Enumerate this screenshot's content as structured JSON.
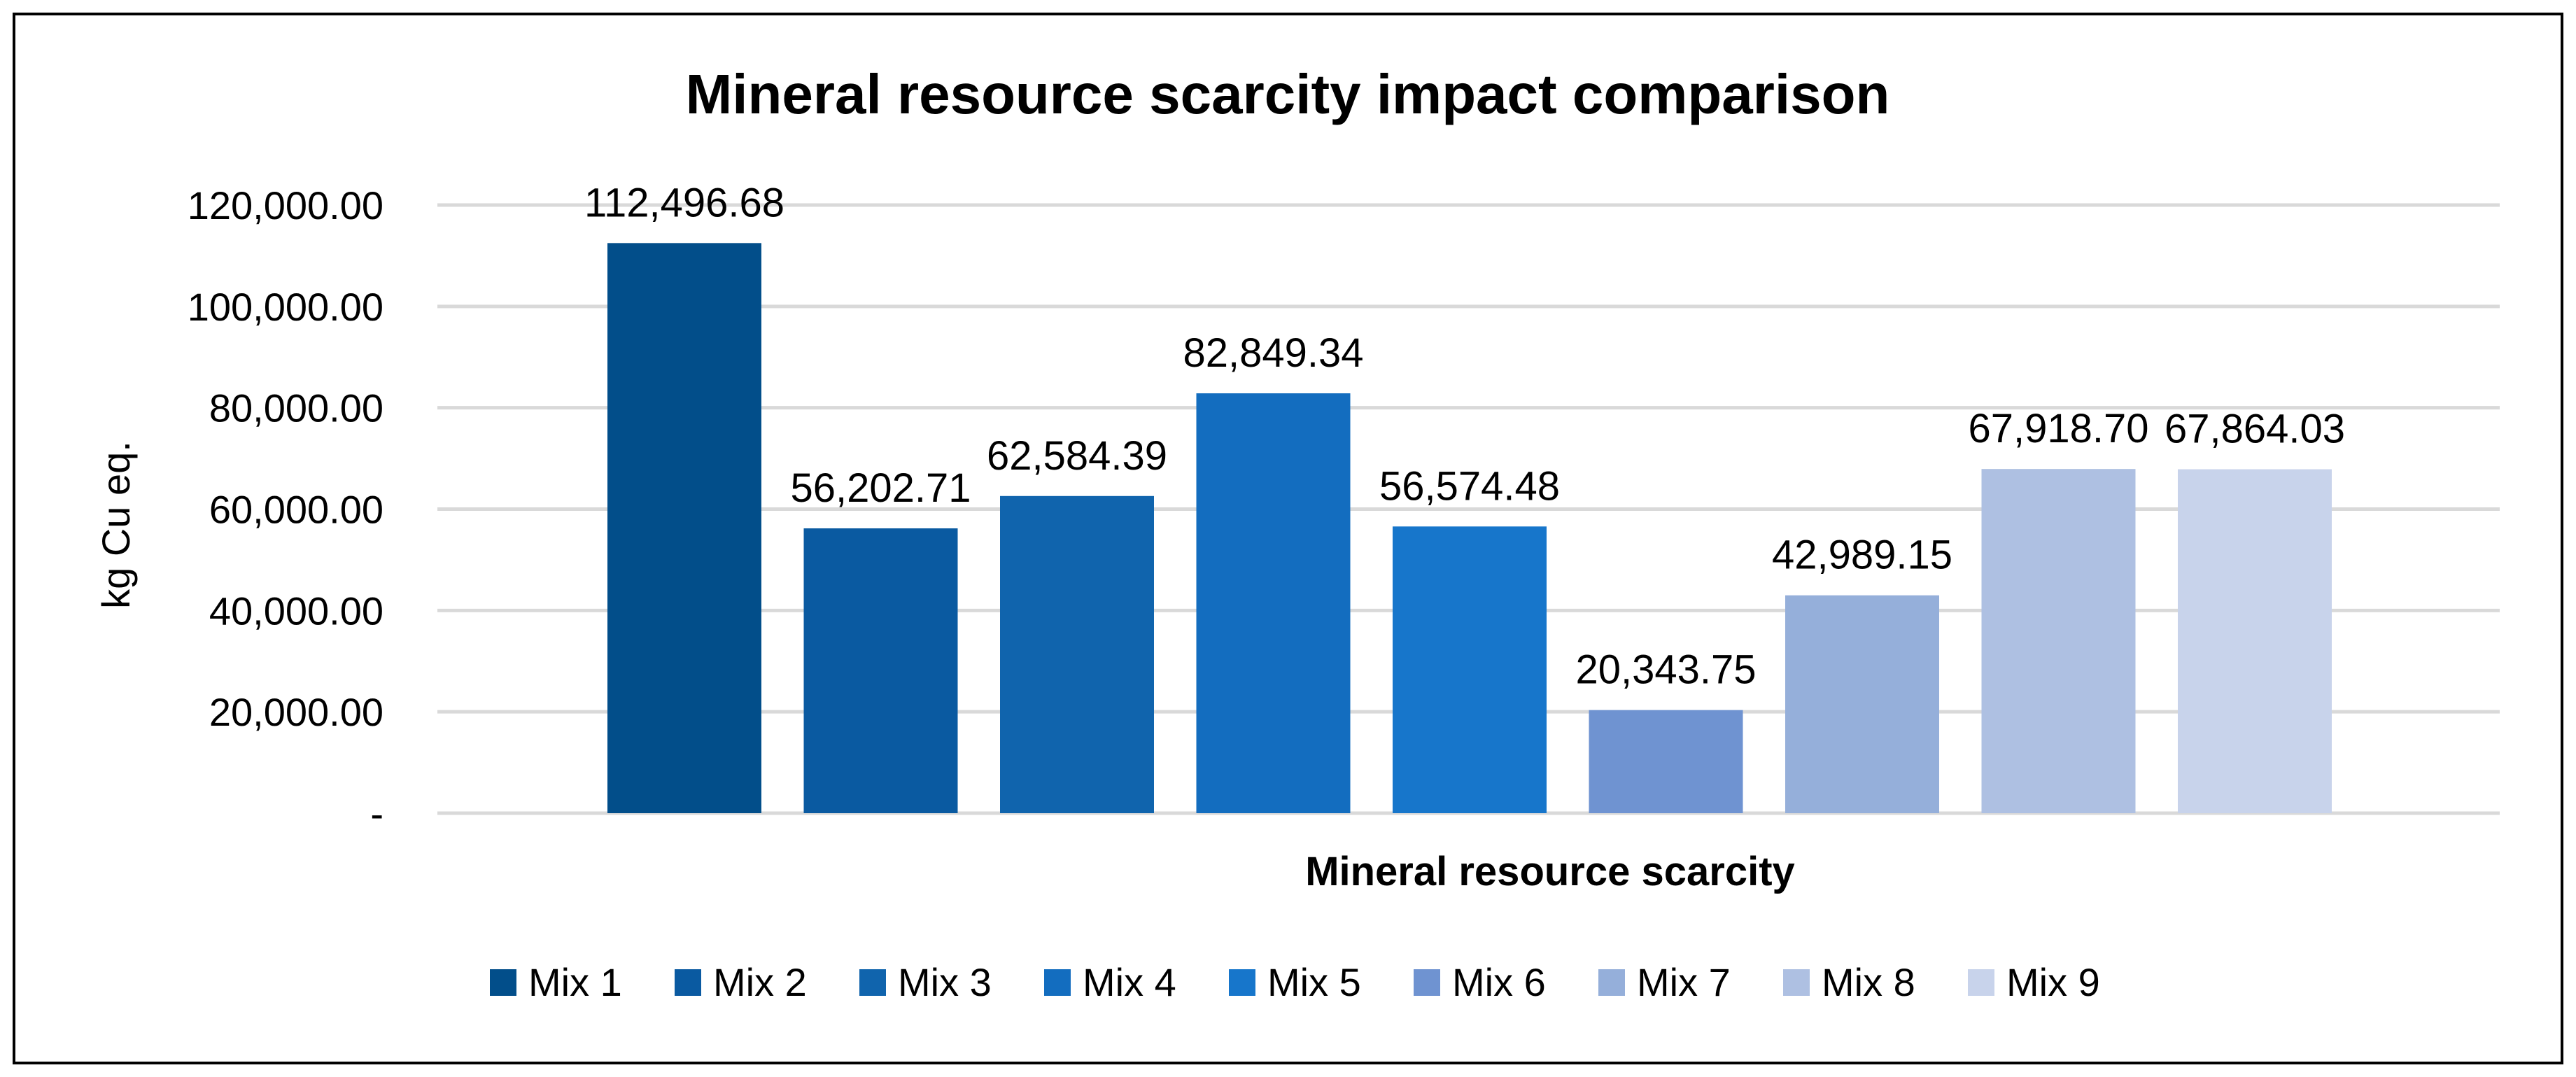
{
  "chart_data": {
    "type": "bar",
    "title": "Mineral resource scarcity impact comparison",
    "xlabel": "Mineral resource scarcity",
    "ylabel": "kg Cu eq.",
    "ylim": [
      0,
      120000
    ],
    "yticks": [
      0,
      20000,
      40000,
      60000,
      80000,
      100000,
      120000
    ],
    "ytick_labels": [
      "-",
      "20,000.00",
      "40,000.00",
      "60,000.00",
      "80,000.00",
      "100,000.00",
      "120,000.00"
    ],
    "grid": true,
    "legend_position": "bottom",
    "series": [
      {
        "name": "Mix 1",
        "value": 112496.68,
        "label": "112,496.68",
        "color": "#024E8A"
      },
      {
        "name": "Mix 2",
        "value": 56202.71,
        "label": "56,202.71",
        "color": "#0A5AA1"
      },
      {
        "name": "Mix 3",
        "value": 62584.39,
        "label": "62,584.39",
        "color": "#1064AD"
      },
      {
        "name": "Mix 4",
        "value": 82849.34,
        "label": "82,849.34",
        "color": "#136DBF"
      },
      {
        "name": "Mix 5",
        "value": 56574.48,
        "label": "56,574.48",
        "color": "#1776CB"
      },
      {
        "name": "Mix 6",
        "value": 20343.75,
        "label": "20,343.75",
        "color": "#6F93D1"
      },
      {
        "name": "Mix 7",
        "value": 42989.15,
        "label": "42,989.15",
        "color": "#95AFDA"
      },
      {
        "name": "Mix 8",
        "value": 67918.7,
        "label": "67,918.70",
        "color": "#AEC0E2"
      },
      {
        "name": "Mix 9",
        "value": 67864.03,
        "label": "67,864.03",
        "color": "#C8D3EB"
      }
    ]
  },
  "colors": {
    "gridline": "#D9D9D9",
    "axis": "#D9D9D9",
    "frame": "#000000"
  }
}
